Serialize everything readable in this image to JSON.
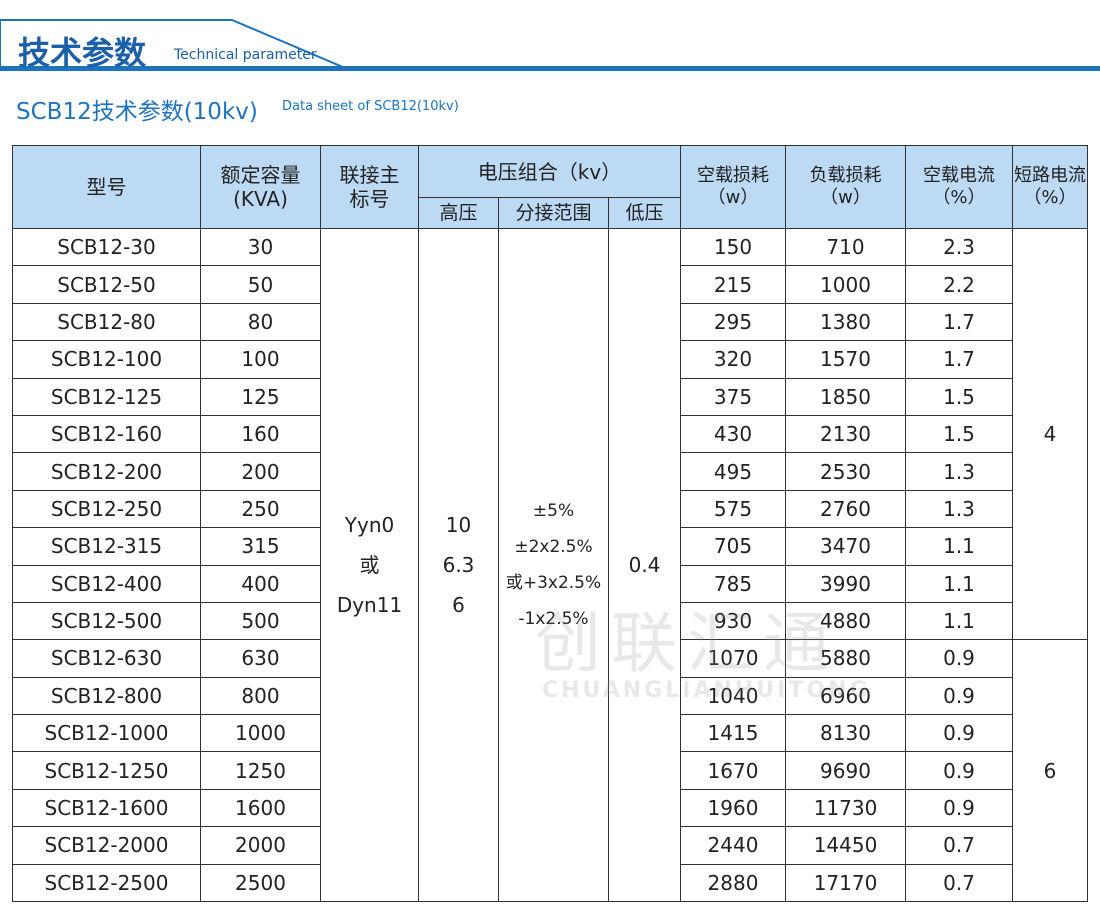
{
  "header": {
    "title": "技术参数",
    "subtitle": "Technical parameter"
  },
  "section": {
    "title": "SCB12技术参数(10kv)",
    "subtitle": "Data sheet of SCB12(10kv)"
  },
  "watermark": {
    "brand": "创联汇通",
    "latin": "CHUANGLIANHUITONG"
  },
  "table": {
    "headers": {
      "model": [
        "型号"
      ],
      "capacity": [
        "额定容量",
        "(KVA)"
      ],
      "connection": [
        "联接主",
        "标号"
      ],
      "voltage": [
        "电压组合（kv）"
      ],
      "high": [
        "高压"
      ],
      "tap": [
        "分接范围"
      ],
      "low": [
        "低压"
      ],
      "noload_loss": [
        "空载损耗",
        "（w）"
      ],
      "load_loss": [
        "负载损耗",
        "（w）"
      ],
      "noload_current": [
        "空载电流",
        "（%）"
      ],
      "short_circuit": [
        "短路电流",
        "（%）"
      ]
    },
    "rows": [
      [
        "SCB12-30",
        "30",
        "150",
        "710",
        "2.3"
      ],
      [
        "SCB12-50",
        "50",
        "215",
        "1000",
        "2.2"
      ],
      [
        "SCB12-80",
        "80",
        "295",
        "1380",
        "1.7"
      ],
      [
        "SCB12-100",
        "100",
        "320",
        "1570",
        "1.7"
      ],
      [
        "SCB12-125",
        "125",
        "375",
        "1850",
        "1.5"
      ],
      [
        "SCB12-160",
        "160",
        "430",
        "2130",
        "1.5"
      ],
      [
        "SCB12-200",
        "200",
        "495",
        "2530",
        "1.3"
      ],
      [
        "SCB12-250",
        "250",
        "575",
        "2760",
        "1.3"
      ],
      [
        "SCB12-315",
        "315",
        "705",
        "3470",
        "1.1"
      ],
      [
        "SCB12-400",
        "400",
        "785",
        "3990",
        "1.1"
      ],
      [
        "SCB12-500",
        "500",
        "930",
        "4880",
        "1.1"
      ],
      [
        "SCB12-630",
        "630",
        "1070",
        "5880",
        "0.9"
      ],
      [
        "SCB12-800",
        "800",
        "1040",
        "6960",
        "0.9"
      ],
      [
        "SCB12-1000",
        "1000",
        "1415",
        "8130",
        "0.9"
      ],
      [
        "SCB12-1250",
        "1250",
        "1670",
        "9690",
        "0.9"
      ],
      [
        "SCB12-1600",
        "1600",
        "1960",
        "11730",
        "0.9"
      ],
      [
        "SCB12-2000",
        "2000",
        "2440",
        "14450",
        "0.7"
      ],
      [
        "SCB12-2500",
        "2500",
        "2880",
        "17170",
        "0.7"
      ]
    ],
    "connection": [
      "Yyn0",
      "或",
      "Dyn11"
    ],
    "high": [
      "10",
      "6.3",
      "6"
    ],
    "tap": [
      "±5%",
      "±2x2.5%",
      "或+3x2.5%",
      "-1x2.5%"
    ],
    "low": [
      "0.4"
    ],
    "short_circuit": [
      {
        "rows": 11,
        "text": "4"
      },
      {
        "rows": 7,
        "text": "6"
      }
    ]
  }
}
